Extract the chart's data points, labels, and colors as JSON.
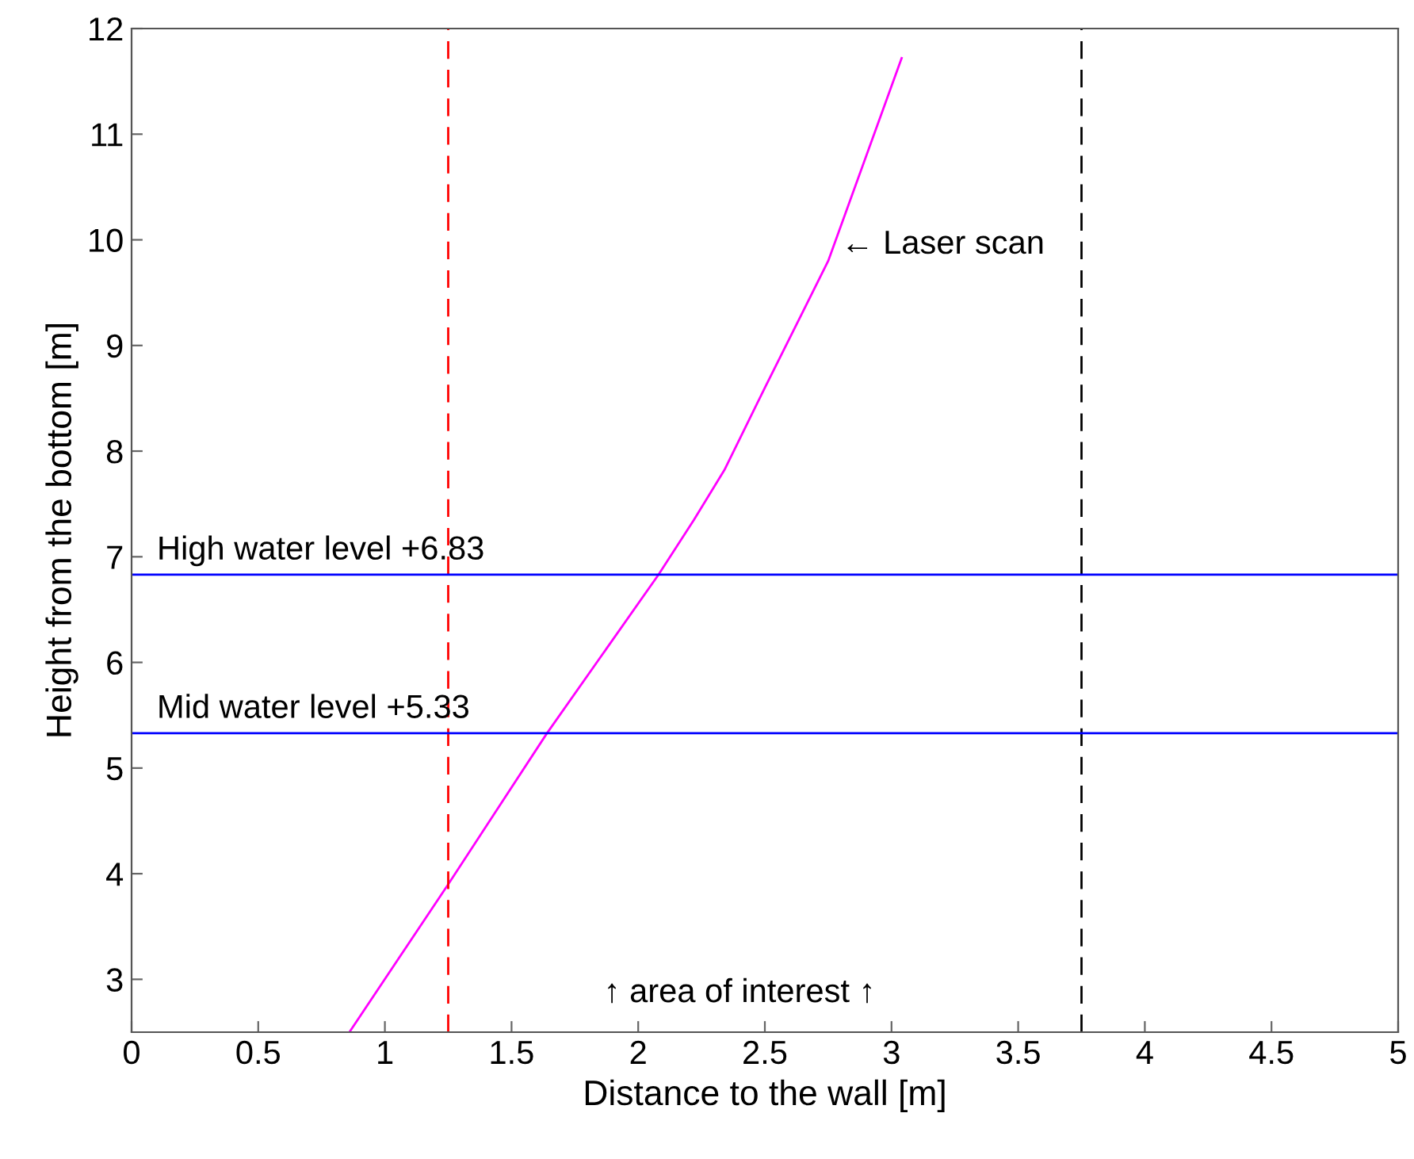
{
  "chart_data": {
    "type": "line",
    "xlabel": "Distance to the wall [m]",
    "ylabel": "Height from the bottom [m]",
    "series": [
      {
        "color": "#ff00ff",
        "x": [
          0.86,
          1.25,
          1.64,
          2.08,
          2.22,
          2.34,
          2.5,
          2.75,
          3.04
        ],
        "values": [
          2.5,
          3.9,
          5.33,
          6.83,
          7.35,
          7.82,
          8.6,
          9.8,
          11.72
        ]
      }
    ],
    "xlim": [
      0,
      5
    ],
    "ylim": [
      2.5,
      12
    ],
    "xticks": [
      0,
      0.5,
      1,
      1.5,
      2,
      2.5,
      3,
      3.5,
      4,
      4.5,
      5
    ],
    "yticks": [
      3,
      4,
      5,
      6,
      7,
      8,
      9,
      10,
      11,
      12
    ],
    "ref_lines": [
      {
        "axis": "x",
        "value": 1.25,
        "color": "#ff0000",
        "line_style": "dashed"
      },
      {
        "axis": "x",
        "value": 3.75,
        "color": "#000000",
        "line_style": "dashed"
      },
      {
        "axis": "y",
        "value": 6.83,
        "label": "High water level +6.83",
        "color": "#0000ff",
        "line_style": "solid"
      },
      {
        "axis": "y",
        "value": 5.33,
        "label": "Mid water level +5.33",
        "color": "#0000ff",
        "line_style": "solid"
      }
    ],
    "annotations": [
      {
        "text": "← Laser scan",
        "x": 2.8,
        "y": 9.95
      },
      "↑ area of interest ↑"
    ],
    "grid": false,
    "legend": false
  }
}
